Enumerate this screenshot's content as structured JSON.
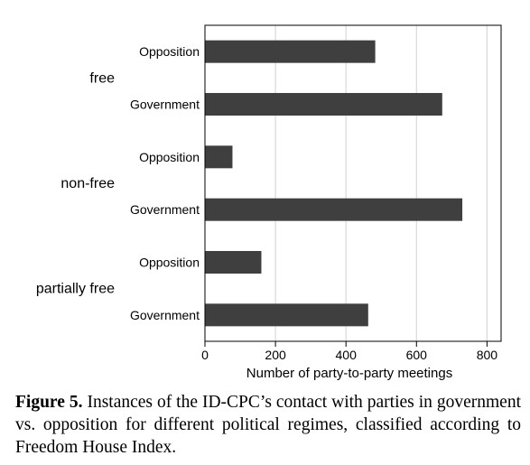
{
  "chart_data": {
    "type": "bar",
    "orientation": "horizontal",
    "xlabel": "Number of party-to-party meetings",
    "xlim": [
      0,
      840
    ],
    "xticks": [
      0,
      200,
      400,
      600,
      800
    ],
    "grid": true,
    "bar_color": "#3f3f3f",
    "groups": [
      {
        "label": "free",
        "bars": [
          {
            "label": "Opposition",
            "value": 483
          },
          {
            "label": "Government",
            "value": 673
          }
        ]
      },
      {
        "label": "non-free",
        "bars": [
          {
            "label": "Opposition",
            "value": 78
          },
          {
            "label": "Government",
            "value": 730
          }
        ]
      },
      {
        "label": "partially free",
        "bars": [
          {
            "label": "Opposition",
            "value": 160
          },
          {
            "label": "Government",
            "value": 463
          }
        ]
      }
    ]
  },
  "caption": {
    "label": "Figure 5.",
    "text": "Instances of the ID-CPC’s contact with parties in government vs. opposition for different political regimes, classified according to Freedom House Index."
  }
}
